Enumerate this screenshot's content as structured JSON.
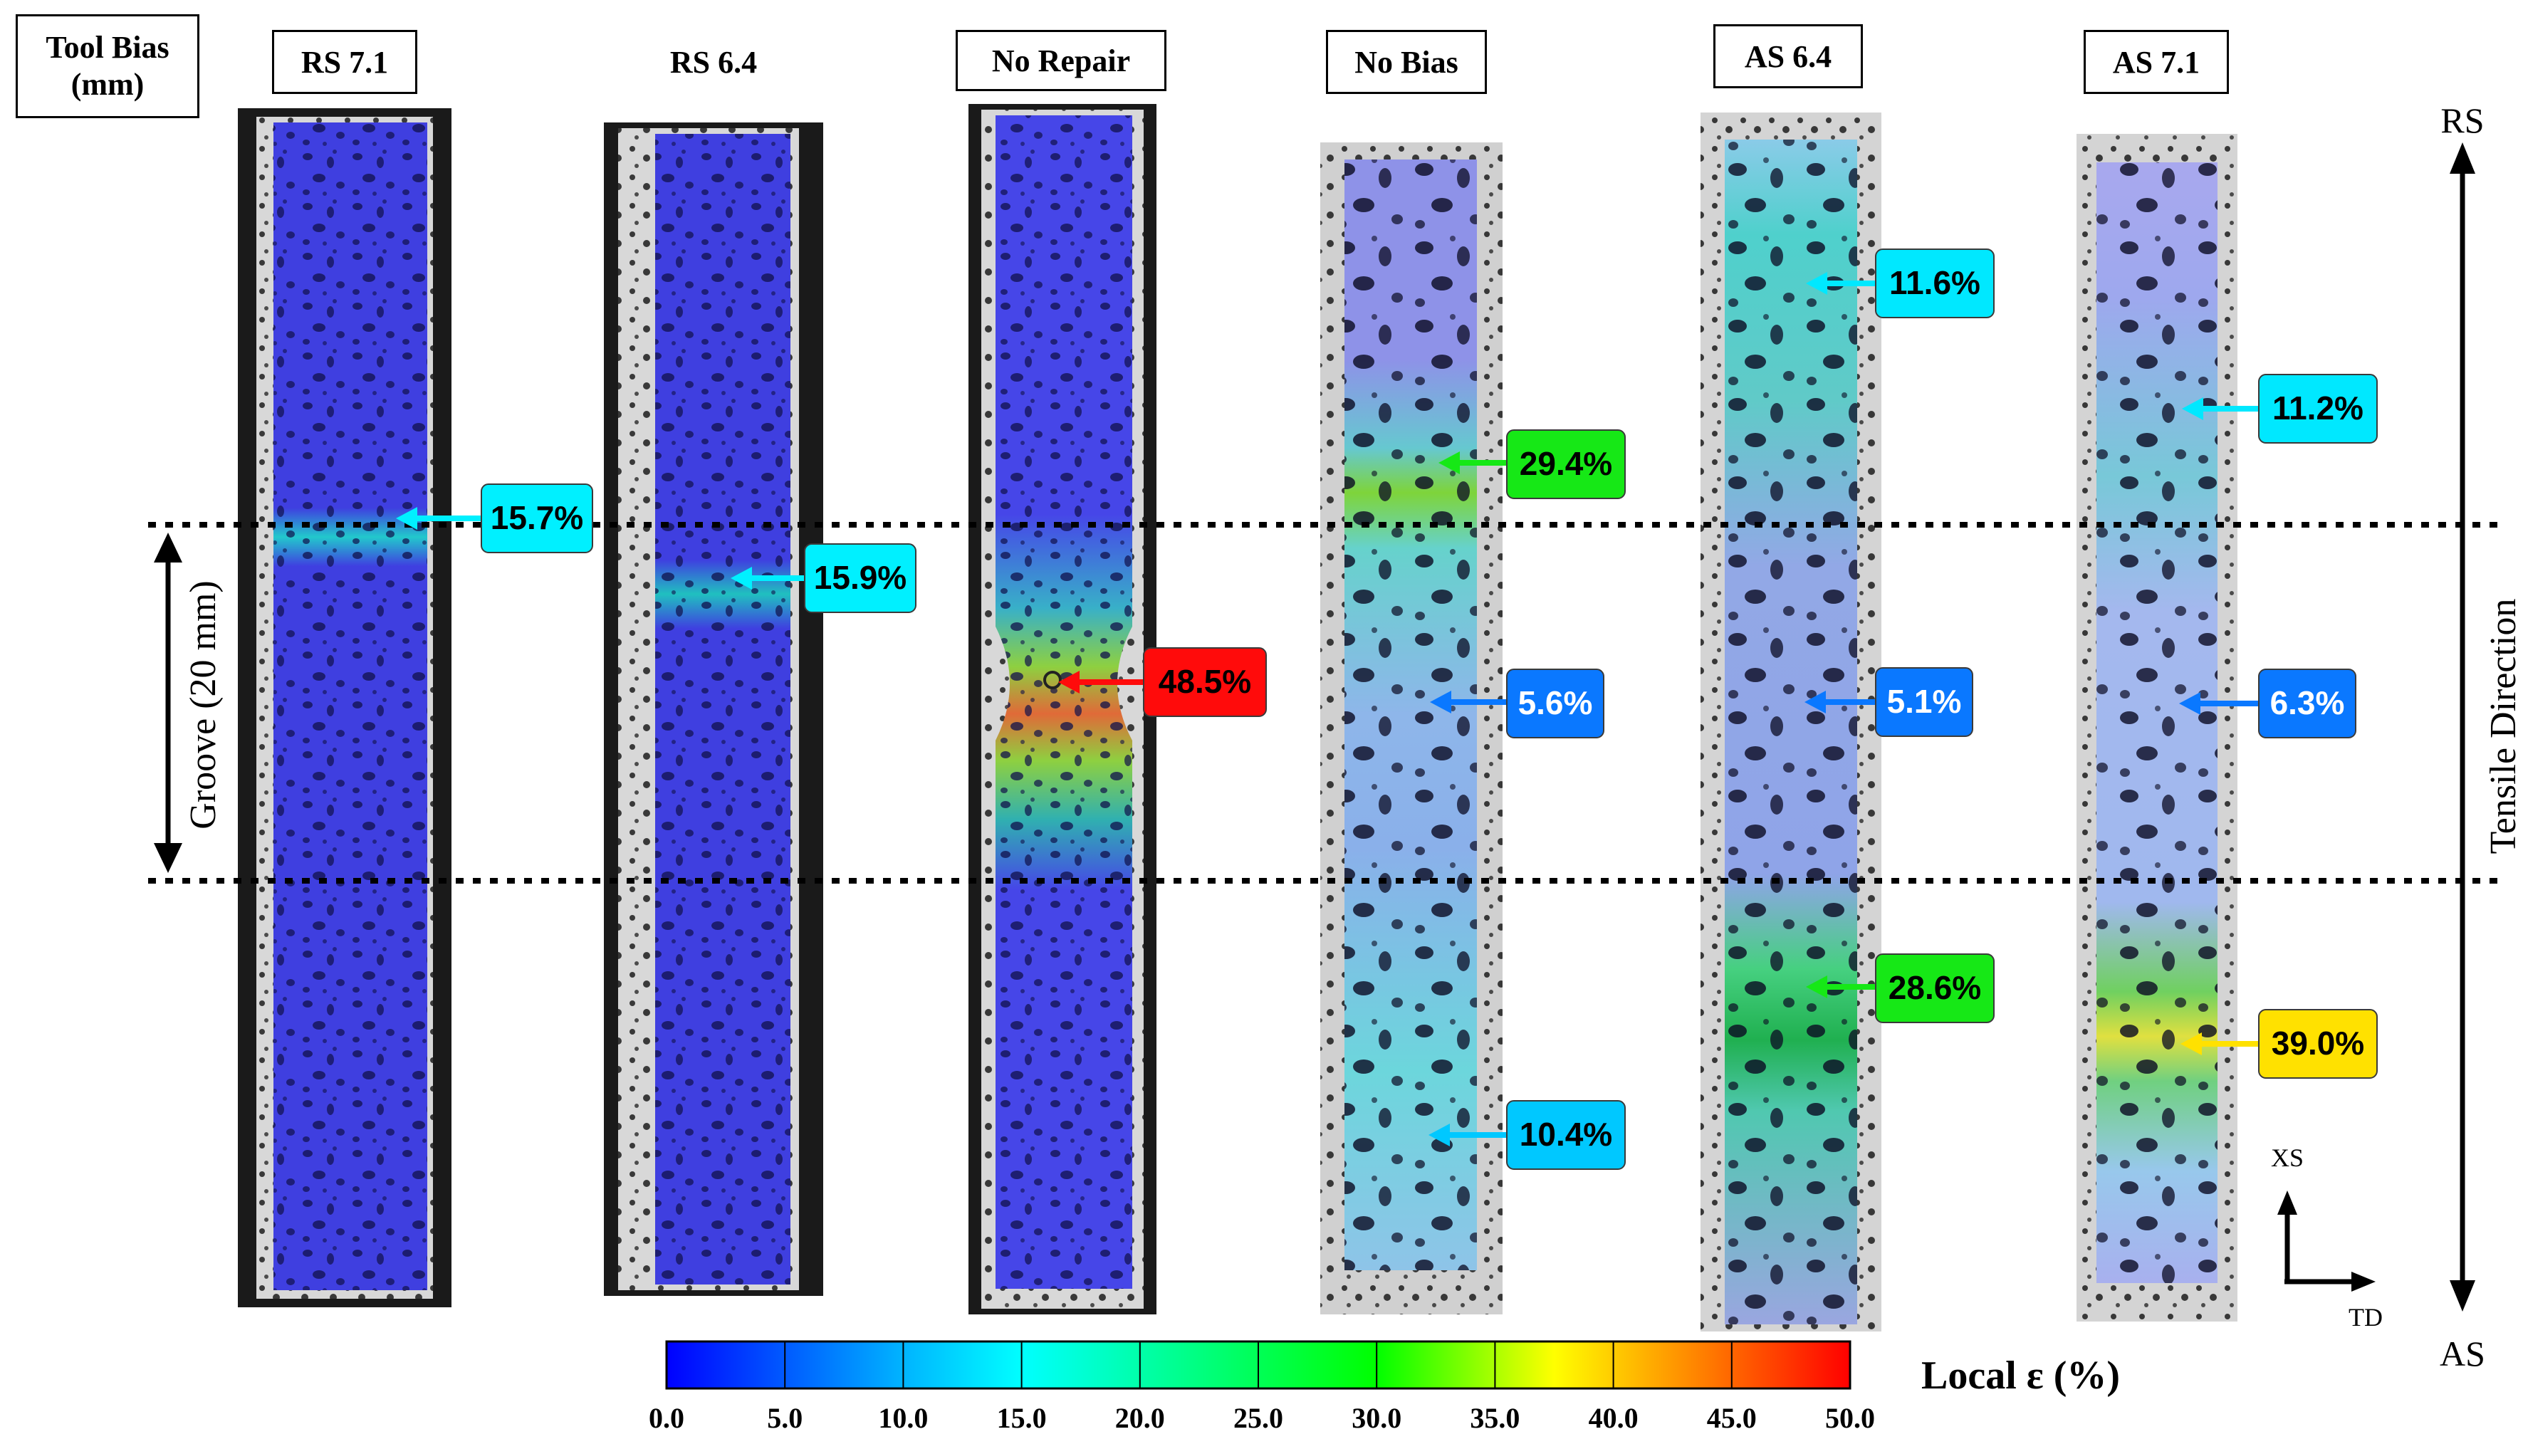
{
  "header": {
    "tool_bias_line1": "Tool Bias",
    "tool_bias_line2": "(mm)"
  },
  "specimens": [
    {
      "label": "RS 7.1",
      "callouts": [
        {
          "value": "15.7%",
          "strain": 15.7,
          "color": "#00f0ff"
        }
      ]
    },
    {
      "label": "RS 6.4",
      "callouts": [
        {
          "value": "15.9%",
          "strain": 15.9,
          "color": "#00f0ff"
        }
      ]
    },
    {
      "label": "No Repair",
      "callouts": [
        {
          "value": "48.5%",
          "strain": 48.5,
          "color": "#ff0b0b"
        }
      ]
    },
    {
      "label": "No Bias",
      "callouts": [
        {
          "value": "29.4%",
          "strain": 29.4,
          "color": "#16e816"
        },
        {
          "value": "5.6%",
          "strain": 5.6,
          "color": "#0a78ff"
        },
        {
          "value": "10.4%",
          "strain": 10.4,
          "color": "#00c8ff"
        }
      ]
    },
    {
      "label": "AS 6.4",
      "callouts": [
        {
          "value": "11.6%",
          "strain": 11.6,
          "color": "#00e8ff"
        },
        {
          "value": "5.1%",
          "strain": 5.1,
          "color": "#0a78ff"
        },
        {
          "value": "28.6%",
          "strain": 28.6,
          "color": "#16e816"
        }
      ]
    },
    {
      "label": "AS 7.1",
      "callouts": [
        {
          "value": "11.2%",
          "strain": 11.2,
          "color": "#00e8ff"
        },
        {
          "value": "6.3%",
          "strain": 6.3,
          "color": "#0a78ff"
        },
        {
          "value": "39.0%",
          "strain": 39.0,
          "color": "#ffe100"
        }
      ]
    }
  ],
  "groove_label": "Groove  (20 mm)",
  "direction": {
    "top": "RS",
    "bottom": "AS",
    "label": "Tensile Direction"
  },
  "axes": {
    "vertical": "XS",
    "horizontal": "TD"
  },
  "colorbar": {
    "title": "Local ε (%)",
    "min": 0,
    "max": 50,
    "ticks": [
      "0.0",
      "5.0",
      "10.0",
      "15.0",
      "20.0",
      "25.0",
      "30.0",
      "35.0",
      "40.0",
      "45.0",
      "50.0"
    ],
    "colors": [
      "#0000ff",
      "#0070ff",
      "#00c8ff",
      "#00ffff",
      "#00ff90",
      "#00ff00",
      "#c8ff00",
      "#ffff00",
      "#ff9000",
      "#ff0000"
    ]
  }
}
